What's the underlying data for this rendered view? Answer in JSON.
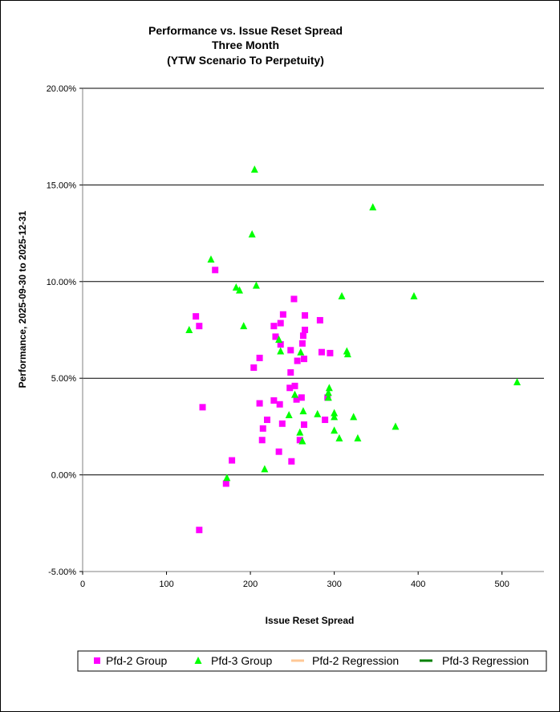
{
  "chart_data": {
    "type": "scatter",
    "title": [
      "Performance vs. Issue Reset Spread",
      "Three Month",
      "(YTW Scenario To Perpetuity)"
    ],
    "xlabel": "Issue  Reset Spread",
    "ylabel": "Performance, 2025-09-30  to 2025-12-31",
    "xlim": [
      0,
      550
    ],
    "ylim": [
      -5,
      20
    ],
    "x_ticks": [
      0,
      100,
      200,
      300,
      400,
      500
    ],
    "x_tick_labels": [
      "0",
      "100",
      "200",
      "300",
      "400",
      "500"
    ],
    "y_ticks": [
      -5,
      0,
      5,
      10,
      15,
      20
    ],
    "y_tick_labels": [
      "-5.00%",
      "0.00%",
      "5.00%",
      "10.00%",
      "15.00%",
      "20.00%"
    ],
    "gridlines": "horizontal major",
    "legend_position": "bottom",
    "series": [
      {
        "name": "Pfd-2 Group",
        "marker": "square",
        "color": "#ff00ff",
        "points": [
          [
            135,
            8.2
          ],
          [
            139,
            7.7
          ],
          [
            139,
            -2.85
          ],
          [
            143,
            3.5
          ],
          [
            158,
            10.6
          ],
          [
            171,
            -0.45
          ],
          [
            178,
            0.75
          ],
          [
            204,
            5.55
          ],
          [
            211,
            6.05
          ],
          [
            211,
            3.7
          ],
          [
            214,
            1.8
          ],
          [
            215,
            2.4
          ],
          [
            220,
            2.85
          ],
          [
            228,
            3.85
          ],
          [
            228,
            7.7
          ],
          [
            230,
            7.15
          ],
          [
            234,
            1.2
          ],
          [
            235,
            3.65
          ],
          [
            236,
            6.75
          ],
          [
            236,
            7.85
          ],
          [
            238,
            2.65
          ],
          [
            239,
            8.3
          ],
          [
            247,
            4.5
          ],
          [
            248,
            5.3
          ],
          [
            248,
            6.45
          ],
          [
            249,
            0.7
          ],
          [
            252,
            9.1
          ],
          [
            253,
            4.6
          ],
          [
            255,
            3.9
          ],
          [
            256,
            5.9
          ],
          [
            259,
            1.8
          ],
          [
            261,
            4.0
          ],
          [
            262,
            6.8
          ],
          [
            264,
            6.0
          ],
          [
            263,
            7.2
          ],
          [
            264,
            2.6
          ],
          [
            265,
            8.25
          ],
          [
            265,
            7.5
          ],
          [
            283,
            8.0
          ],
          [
            285,
            6.35
          ],
          [
            289,
            2.85
          ],
          [
            292,
            4.0
          ],
          [
            295,
            6.3
          ]
        ]
      },
      {
        "name": "Pfd-3 Group",
        "marker": "triangle",
        "color": "#00ff00",
        "points": [
          [
            127,
            7.5
          ],
          [
            153,
            11.15
          ],
          [
            172,
            -0.15
          ],
          [
            183,
            9.7
          ],
          [
            187,
            9.55
          ],
          [
            192,
            7.7
          ],
          [
            202,
            12.45
          ],
          [
            205,
            15.8
          ],
          [
            207,
            9.8
          ],
          [
            217,
            0.3
          ],
          [
            234,
            7.0
          ],
          [
            236,
            6.4
          ],
          [
            246,
            3.1
          ],
          [
            253,
            4.15
          ],
          [
            259,
            2.2
          ],
          [
            260,
            6.35
          ],
          [
            262,
            1.75
          ],
          [
            263,
            3.3
          ],
          [
            280,
            3.15
          ],
          [
            293,
            4.0
          ],
          [
            293,
            4.25
          ],
          [
            294,
            4.5
          ],
          [
            300,
            3.2
          ],
          [
            300,
            3.0
          ],
          [
            300,
            2.3
          ],
          [
            306,
            1.9
          ],
          [
            309,
            9.25
          ],
          [
            315,
            6.4
          ],
          [
            316,
            6.25
          ],
          [
            323,
            3.0
          ],
          [
            328,
            1.9
          ],
          [
            346,
            13.85
          ],
          [
            373,
            2.5
          ],
          [
            395,
            9.25
          ],
          [
            518,
            4.8
          ]
        ]
      },
      {
        "name": "Pfd-2 Regression",
        "marker": "line",
        "color": "#ffc896",
        "points": []
      },
      {
        "name": "Pfd-3 Regression",
        "marker": "line",
        "color": "#008000",
        "points": []
      }
    ]
  }
}
